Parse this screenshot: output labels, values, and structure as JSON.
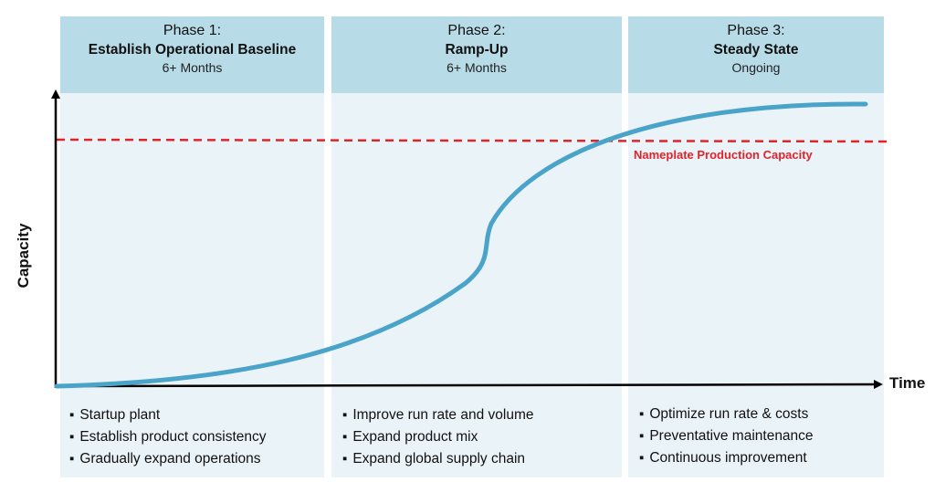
{
  "phases": [
    {
      "label": "Phase 1:",
      "title": "Establish Operational Baseline",
      "duration": "6+ Months",
      "bullets": [
        "Startup plant",
        "Establish product consistency",
        "Gradually expand operations"
      ]
    },
    {
      "label": "Phase 2:",
      "title": "Ramp-Up",
      "duration": "6+ Months",
      "bullets": [
        "Improve run rate and volume",
        "Expand product mix",
        "Expand global supply chain"
      ]
    },
    {
      "label": "Phase 3:",
      "title": "Steady State",
      "duration": "Ongoing",
      "bullets": [
        "Optimize run rate & costs",
        "Preventative maintenance",
        "Continuous improvement"
      ]
    }
  ],
  "axes": {
    "y_label": "Capacity",
    "x_label": "Time"
  },
  "reference_line": {
    "label": "Nameplate Production Capacity",
    "color": "#e0242b"
  },
  "colors": {
    "curve": "#4aa3c8",
    "panel_header": "#b7dbe7",
    "panel_body": "#eaf3f7"
  }
}
